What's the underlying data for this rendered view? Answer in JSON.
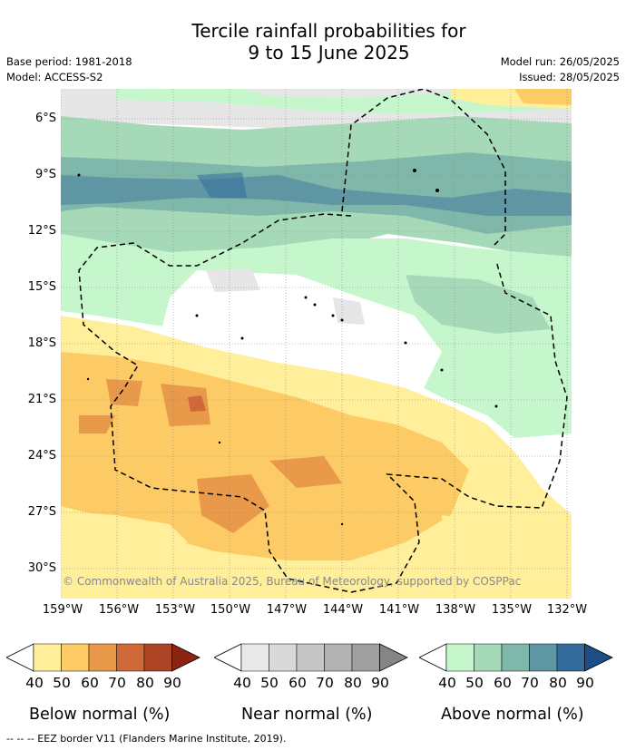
{
  "title_line1": "Tercile rainfall probabilities for",
  "title_line2": "9 to 15 June 2025",
  "meta_left": {
    "base_period": "Base period: 1981-2018",
    "model": "Model: ACCESS-S2"
  },
  "meta_right": {
    "model_run": "Model run: 26/05/2025",
    "issued": "Issued: 28/05/2025"
  },
  "lat_labels": [
    "6°S",
    "9°S",
    "12°S",
    "15°S",
    "18°S",
    "21°S",
    "24°S",
    "27°S",
    "30°S"
  ],
  "lon_labels": [
    "159°W",
    "156°W",
    "153°W",
    "150°W",
    "147°W",
    "144°W",
    "141°W",
    "138°W",
    "135°W",
    "132°W"
  ],
  "copyright": "© Commonwealth of Australia 2025, Bureau of Meteorology, supported by COSPPac",
  "legends": [
    {
      "caption": "Below normal (%)",
      "ticks": [
        "40",
        "50",
        "60",
        "70",
        "80",
        "90"
      ],
      "colors": [
        "#ffee9a",
        "#fdcb66",
        "#e8994a",
        "#d0693a",
        "#ad4426",
        "#8b2512"
      ]
    },
    {
      "caption": "Near normal (%)",
      "ticks": [
        "40",
        "50",
        "60",
        "70",
        "80",
        "90"
      ],
      "colors": [
        "#e9e9e9",
        "#d9d9d9",
        "#c6c6c6",
        "#b3b3b3",
        "#9f9f9f",
        "#858585"
      ]
    },
    {
      "caption": "Above normal (%)",
      "ticks": [
        "40",
        "50",
        "60",
        "70",
        "80",
        "90"
      ],
      "colors": [
        "#c6f7cc",
        "#a6d9b8",
        "#7fb8ab",
        "#5e97a3",
        "#336b9d",
        "#1c4d86"
      ]
    }
  ],
  "footer": "--  --  -- EEZ border V11 (Flanders Marine Institute, 2019)."
}
